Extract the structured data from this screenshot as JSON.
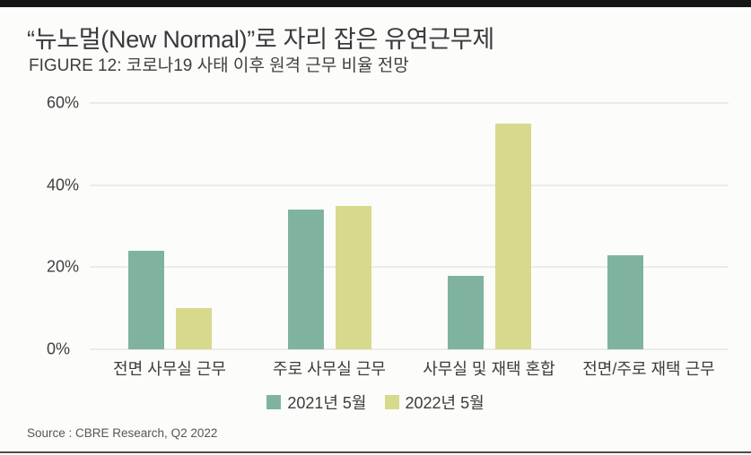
{
  "page": {
    "title": "“뉴노멀(New Normal)”로 자리 잡은 유연근무제",
    "subtitle": "FIGURE 12: 코로나19 사태 이후 원격 근무 비율 전망",
    "source": "Source : CBRE Research, Q2 2022"
  },
  "colors": {
    "series_2021": "#7fb3a0",
    "series_2022": "#d7d98c",
    "top_bar": "#161616",
    "gridline": "#dadad7"
  },
  "chart_data": {
    "type": "bar",
    "title": "“뉴노멀(New Normal)”로 자리 잡은 유연근무제",
    "subtitle": "FIGURE 12: 코로나19 사태 이후 원격 근무 비율 전망",
    "categories": [
      "전면 사무실 근무",
      "주로 사무실 근무",
      "사무실 및 재택 혼합",
      "전면/주로 재택 근무"
    ],
    "series": [
      {
        "name": "2021년 5월",
        "color": "#7fb3a0",
        "values": [
          24,
          34,
          18,
          23
        ]
      },
      {
        "name": "2022년 5월",
        "color": "#d7d98c",
        "values": [
          10,
          35,
          55,
          null
        ]
      }
    ],
    "ylabel": "",
    "xlabel": "",
    "ylim": [
      0,
      60
    ],
    "yticks": [
      60,
      40,
      20,
      0
    ],
    "ytick_labels": [
      "60%",
      "40%",
      "20%",
      "0%"
    ],
    "grid": true,
    "legend_position": "bottom",
    "source": "Source : CBRE Research, Q2 2022"
  }
}
